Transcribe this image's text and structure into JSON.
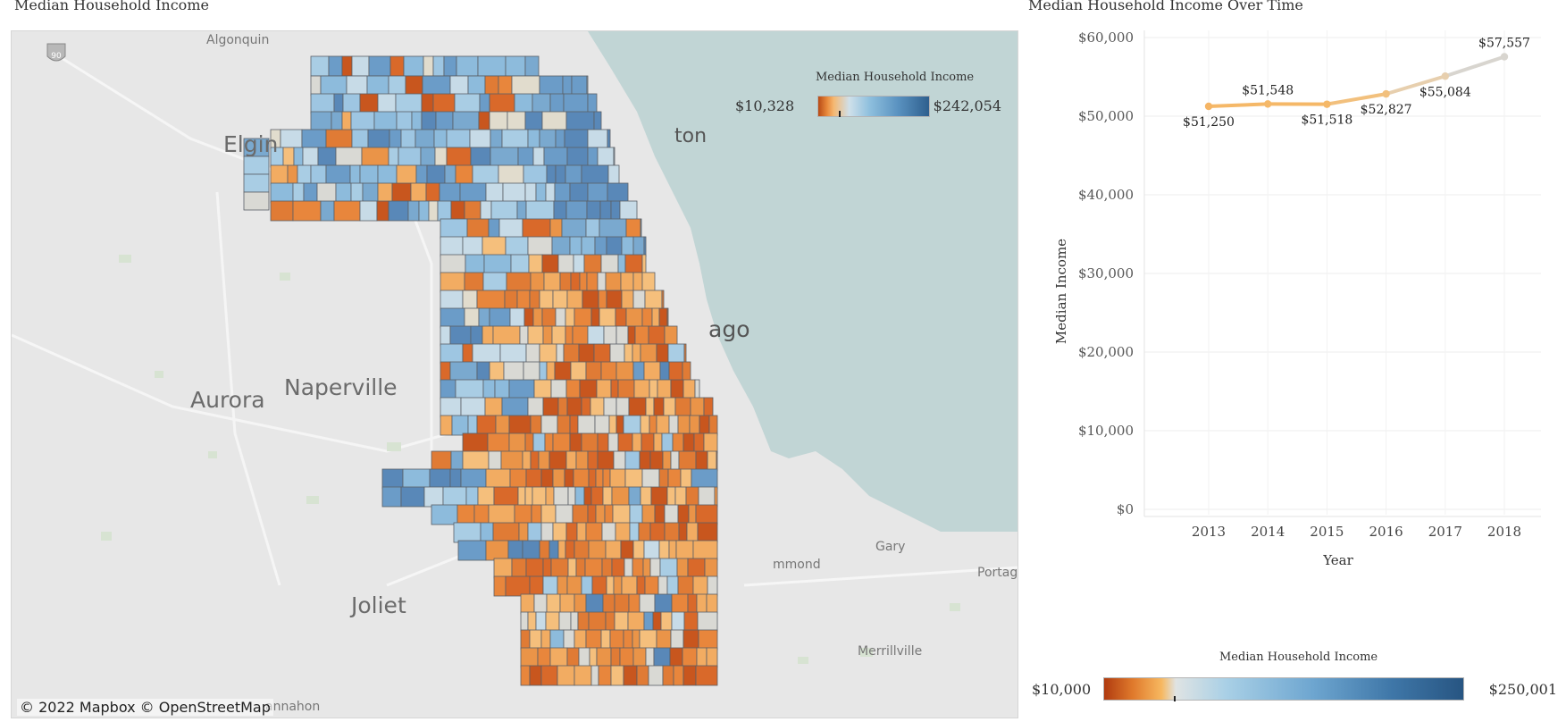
{
  "map_panel": {
    "title": "Median Household Income",
    "legend": {
      "title": "Median Household Income",
      "min_label": "$10,328",
      "max_label": "$242,054"
    },
    "place_labels": {
      "algonquin": "Algonquin",
      "elgin": "Elgin",
      "aurora": "Aurora",
      "naperville": "Naperville",
      "joliet": "Joliet",
      "chicago_fragment": "ago",
      "evanston_fragment": "ton",
      "gary": "Gary",
      "hammond_fragment": "mmond",
      "portage_fragment": "Portag",
      "merrillville": "Merrillville",
      "channahon_fragment": "annahon",
      "highway_shield": "90"
    },
    "attribution": "© 2022 Mapbox  © OpenStreetMap",
    "colors": {
      "lake": "#c1d5d5",
      "land": "#e7e7e7",
      "tract_border": "#5a5f66"
    }
  },
  "line_chart_panel": {
    "title": "Median Household Income Over Time"
  },
  "chart_data": {
    "type": "line",
    "title": "Median Household Income Over Time",
    "xlabel": "Year",
    "ylabel": "Median Income",
    "categories": [
      "2013",
      "2014",
      "2015",
      "2016",
      "2017",
      "2018"
    ],
    "values": [
      51250,
      51548,
      51518,
      52827,
      55084,
      57557
    ],
    "data_labels": [
      "$51,250",
      "$51,548",
      "$51,518",
      "$52,827",
      "$55,084",
      "$57,557"
    ],
    "ylim": [
      0,
      60000
    ],
    "yticks": [
      0,
      10000,
      20000,
      30000,
      40000,
      50000,
      60000
    ],
    "ytick_labels": [
      "$0",
      "$10,000",
      "$20,000",
      "$30,000",
      "$40,000",
      "$50,000",
      "$60,000"
    ],
    "grid": true,
    "point_colors": [
      "#f5b565",
      "#f5b868",
      "#f5b868",
      "#f2c07d",
      "#e7cfae",
      "#d8d5cf"
    ]
  },
  "bottom_legend": {
    "title": "Median Household Income",
    "min_label": "$10,000",
    "max_label": "$250,001"
  }
}
